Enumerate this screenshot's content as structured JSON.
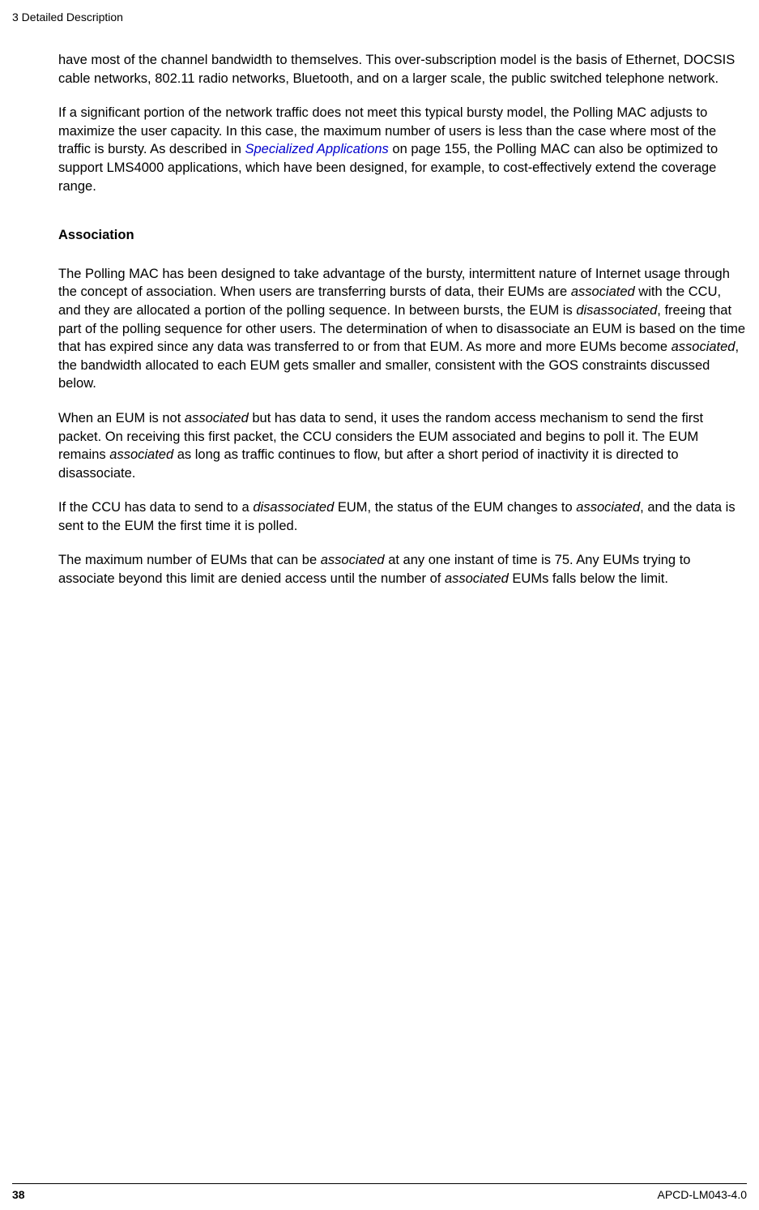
{
  "header": {
    "title": "3  Detailed Description"
  },
  "content": {
    "para1": "have most of the channel bandwidth to themselves. This over-subscription model is the basis of Ethernet, DOCSIS cable networks, 802.11 radio networks, Bluetooth, and on a larger scale, the public switched telephone network.",
    "para2_part1": "If a significant portion of the network traffic does not meet this typical bursty model, the Polling MAC adjusts to maximize the user capacity. In this case, the maximum number of users is less than the case where most of the traffic is bursty. As described in ",
    "para2_link": "Specialized Applications",
    "para2_part2": " on page 155, the Polling MAC can also be optimized to support LMS4000 applications, which have been designed, for example, to cost-effectively extend the coverage range.",
    "heading1": "Association",
    "para3_part1": "The Polling MAC has been designed to take advantage of the bursty, intermittent nature of Internet usage through the concept of association. When users are transferring bursts of data, their EUMs are ",
    "para3_italic1": "associated",
    "para3_part2": " with the CCU, and they are allocated a portion of the polling sequence. In between bursts, the EUM is ",
    "para3_italic2": "disassociated",
    "para3_part3": ", freeing that part of the polling sequence for other users. The determination of when to disassociate an EUM is based on the time that has expired since any data was transferred to or from that EUM. As more and more EUMs become ",
    "para3_italic3": "associated",
    "para3_part4": ", the bandwidth allocated to each EUM gets smaller and smaller, consistent with the GOS constraints discussed below.",
    "para4_part1": "When an EUM is not ",
    "para4_italic1": "associated",
    "para4_part2": " but has data to send, it uses the random access mechanism to send the first packet. On receiving this first packet, the CCU considers the EUM associated and begins to poll it. The EUM remains ",
    "para4_italic2": "associated",
    "para4_part3": " as long as traffic continues to flow, but after a short period of inactivity it is directed to disassociate.",
    "para5_part1": "If the CCU has data to send to a ",
    "para5_italic1": "disassociated",
    "para5_part2": " EUM, the status of the EUM changes to ",
    "para5_italic2": "associated",
    "para5_part3": ", and the data is sent to the EUM the first time it is polled.",
    "para6_part1": "The maximum number of EUMs that can be ",
    "para6_italic1": "associated",
    "para6_part2": " at any one instant of time is 75. Any EUMs trying to associate beyond this limit are denied access until the number of ",
    "para6_italic2": "associated",
    "para6_part3": " EUMs falls below the limit."
  },
  "footer": {
    "page_number": "38",
    "doc_id": "APCD-LM043-4.0"
  }
}
